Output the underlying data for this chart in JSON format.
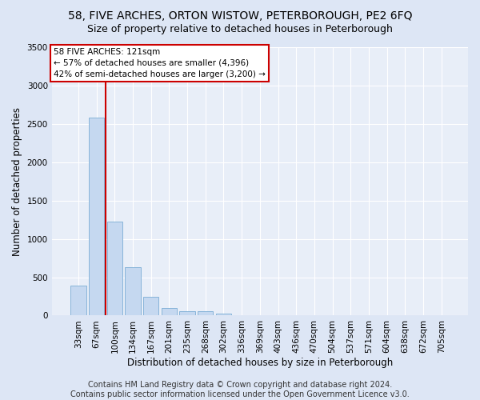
{
  "title_line1": "58, FIVE ARCHES, ORTON WISTOW, PETERBOROUGH, PE2 6FQ",
  "title_line2": "Size of property relative to detached houses in Peterborough",
  "xlabel": "Distribution of detached houses by size in Peterborough",
  "ylabel": "Number of detached properties",
  "categories": [
    "33sqm",
    "67sqm",
    "100sqm",
    "134sqm",
    "167sqm",
    "201sqm",
    "235sqm",
    "268sqm",
    "302sqm",
    "336sqm",
    "369sqm",
    "403sqm",
    "436sqm",
    "470sqm",
    "504sqm",
    "537sqm",
    "571sqm",
    "604sqm",
    "638sqm",
    "672sqm",
    "705sqm"
  ],
  "values": [
    390,
    2580,
    1230,
    630,
    240,
    100,
    60,
    55,
    30,
    0,
    0,
    0,
    0,
    0,
    0,
    0,
    0,
    0,
    0,
    0,
    0
  ],
  "bar_color": "#c5d8f0",
  "bar_edge_color": "#7aadd4",
  "vline_color": "#cc0000",
  "vline_pos": 1.5,
  "ylim": [
    0,
    3500
  ],
  "yticks": [
    0,
    500,
    1000,
    1500,
    2000,
    2500,
    3000,
    3500
  ],
  "annotation_text": "58 FIVE ARCHES: 121sqm\n← 57% of detached houses are smaller (4,396)\n42% of semi-detached houses are larger (3,200) →",
  "annotation_box_color": "#ffffff",
  "annotation_box_edge": "#cc0000",
  "footer_text": "Contains HM Land Registry data © Crown copyright and database right 2024.\nContains public sector information licensed under the Open Government Licence v3.0.",
  "bg_color": "#dde6f5",
  "plot_bg_color": "#e8eef8",
  "grid_color": "#ffffff",
  "title_fontsize": 10,
  "subtitle_fontsize": 9,
  "axis_label_fontsize": 8.5,
  "tick_fontsize": 7.5,
  "annotation_fontsize": 7.5,
  "footer_fontsize": 7
}
